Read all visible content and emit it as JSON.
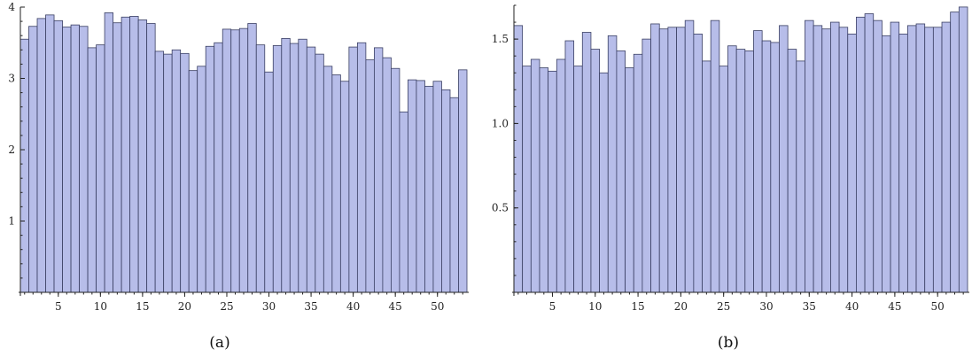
{
  "colors": {
    "bar_fill": "#b7bde9",
    "bar_stroke": "#3a3f63",
    "axis": "#222222"
  },
  "chart_data": [
    {
      "type": "bar",
      "caption": "(a)",
      "title": "",
      "xlabel": "",
      "ylabel": "",
      "ylim": [
        0,
        4
      ],
      "grid": false,
      "x": [
        1,
        2,
        3,
        4,
        5,
        6,
        7,
        8,
        9,
        10,
        11,
        12,
        13,
        14,
        15,
        16,
        17,
        18,
        19,
        20,
        21,
        22,
        23,
        24,
        25,
        26,
        27,
        28,
        29,
        30,
        31,
        32,
        33,
        34,
        35,
        36,
        37,
        38,
        39,
        40,
        41,
        42,
        43,
        44,
        45,
        46,
        47,
        48,
        49,
        50,
        51,
        52,
        53
      ],
      "values": [
        3.55,
        3.73,
        3.84,
        3.89,
        3.81,
        3.72,
        3.75,
        3.73,
        3.43,
        3.47,
        3.92,
        3.78,
        3.86,
        3.87,
        3.82,
        3.77,
        3.38,
        3.34,
        3.4,
        3.35,
        3.11,
        3.17,
        3.45,
        3.5,
        3.69,
        3.68,
        3.7,
        3.77,
        3.47,
        3.09,
        3.46,
        3.56,
        3.49,
        3.55,
        3.44,
        3.34,
        3.17,
        3.05,
        2.96,
        3.44,
        3.5,
        3.26,
        3.43,
        3.29,
        3.14,
        2.53,
        2.98,
        2.97,
        2.89,
        2.96,
        2.84,
        2.73,
        3.12
      ],
      "x_ticks": [
        "5",
        "10",
        "15",
        "20",
        "25",
        "30",
        "35",
        "40",
        "45",
        "50"
      ],
      "x_tick_values": [
        5,
        10,
        15,
        20,
        25,
        30,
        35,
        40,
        45,
        50
      ],
      "y_ticks": [
        "1",
        "2",
        "3",
        "4"
      ],
      "y_tick_values": [
        1,
        2,
        3,
        4
      ]
    },
    {
      "type": "bar",
      "caption": "(b)",
      "title": "",
      "xlabel": "",
      "ylabel": "",
      "ylim": [
        0,
        1.7
      ],
      "grid": false,
      "x": [
        1,
        2,
        3,
        4,
        5,
        6,
        7,
        8,
        9,
        10,
        11,
        12,
        13,
        14,
        15,
        16,
        17,
        18,
        19,
        20,
        21,
        22,
        23,
        24,
        25,
        26,
        27,
        28,
        29,
        30,
        31,
        32,
        33,
        34,
        35,
        36,
        37,
        38,
        39,
        40,
        41,
        42,
        43,
        44,
        45,
        46,
        47,
        48,
        49,
        50,
        51,
        52,
        53
      ],
      "values": [
        1.58,
        1.34,
        1.38,
        1.33,
        1.31,
        1.38,
        1.49,
        1.34,
        1.54,
        1.44,
        1.3,
        1.52,
        1.43,
        1.33,
        1.41,
        1.5,
        1.59,
        1.56,
        1.57,
        1.57,
        1.61,
        1.53,
        1.37,
        1.61,
        1.34,
        1.46,
        1.44,
        1.43,
        1.55,
        1.49,
        1.48,
        1.58,
        1.44,
        1.37,
        1.61,
        1.58,
        1.56,
        1.6,
        1.57,
        1.53,
        1.63,
        1.65,
        1.61,
        1.52,
        1.6,
        1.53,
        1.58,
        1.59,
        1.57,
        1.57,
        1.6,
        1.66,
        1.69
      ],
      "x_ticks": [
        "5",
        "10",
        "15",
        "20",
        "25",
        "30",
        "35",
        "40",
        "45",
        "50"
      ],
      "x_tick_values": [
        5,
        10,
        15,
        20,
        25,
        30,
        35,
        40,
        45,
        50
      ],
      "y_ticks": [
        "0.5",
        "1.0",
        "1.5"
      ],
      "y_tick_values": [
        0.5,
        1.0,
        1.5
      ]
    }
  ]
}
